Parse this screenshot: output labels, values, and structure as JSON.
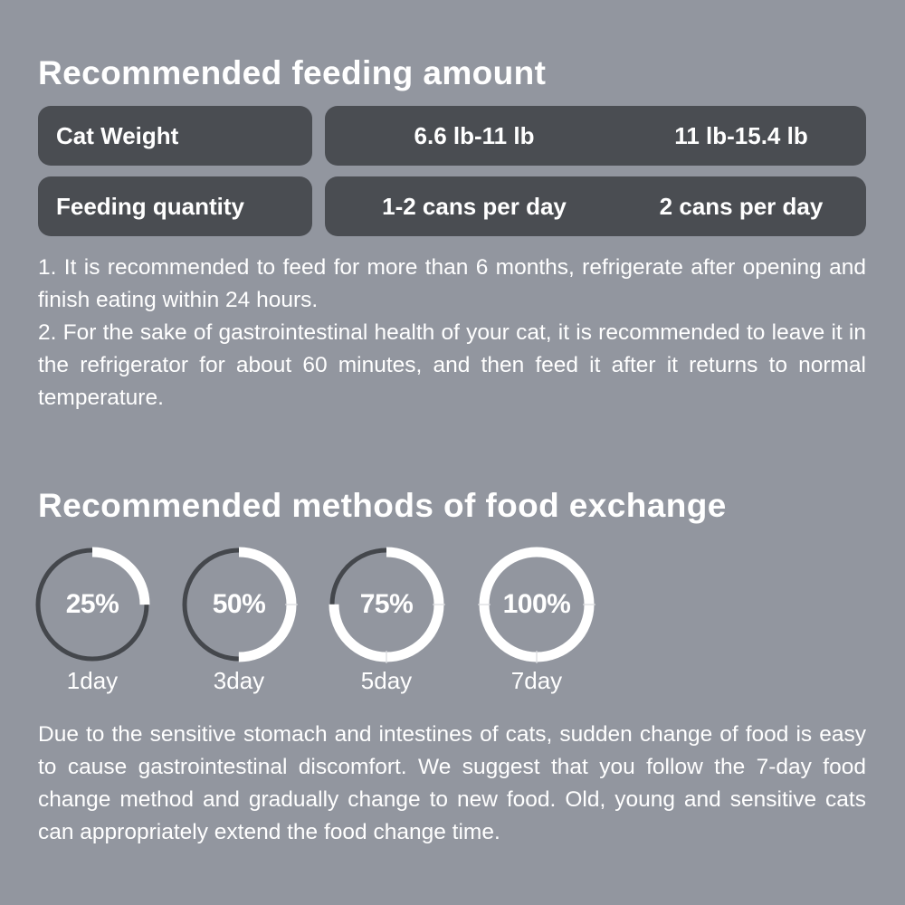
{
  "feeding": {
    "title": "Recommended feeding amount",
    "table": {
      "weight_label": "Cat Weight",
      "weights": [
        "6.6 lb-11 lb",
        "11 lb-15.4 lb"
      ],
      "quantity_label": "Feeding quantity",
      "quantities": [
        "1-2 cans per day",
        "2 cans per day"
      ]
    },
    "notes": [
      "1. It is recommended to feed for more than 6 months, refrigerate after opening and finish eating within 24 hours.",
      "2. For the sake of gastrointestinal health of your cat, it is recommended to leave it in the refrigerator for about 60 minutes, and then feed it after it returns to normal temperature."
    ]
  },
  "exchange": {
    "title": "Recommended methods of food exchange",
    "steps": [
      {
        "percent_label": "25%",
        "fraction": 0.25,
        "day": "1day"
      },
      {
        "percent_label": "50%",
        "fraction": 0.5,
        "day": "3day"
      },
      {
        "percent_label": "75%",
        "fraction": 0.75,
        "day": "5day"
      },
      {
        "percent_label": "100%",
        "fraction": 1.0,
        "day": "7day"
      }
    ],
    "description": "Due to the sensitive stomach and intestines of cats, sudden change of food is easy to cause gastrointestinal discomfort. We suggest that you follow the 7-day food change method and gradually change to new food. Old, young and sensitive cats can appropriately extend the food change time."
  },
  "colors": {
    "background": "#92969f",
    "pill": "#4a4d52",
    "ring_track": "#44474c",
    "ring_fill": "#ffffff"
  }
}
